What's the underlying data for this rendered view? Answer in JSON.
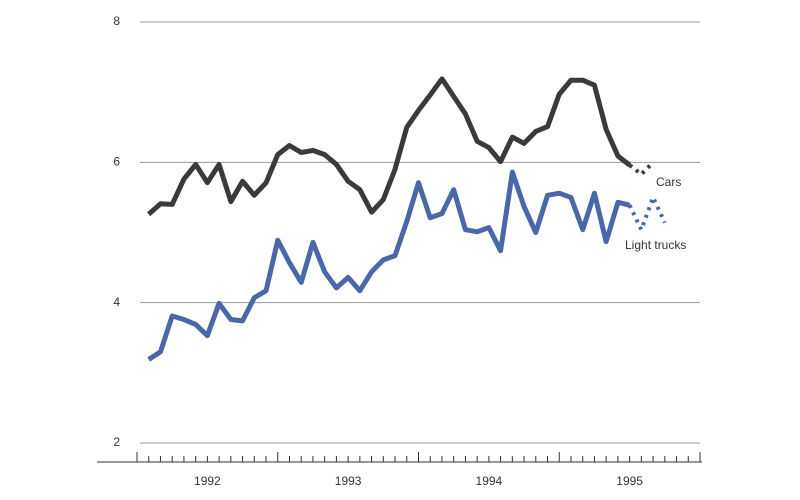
{
  "chart_data": {
    "type": "line",
    "ylim": [
      2,
      8
    ],
    "yticks": [
      2,
      4,
      6,
      8
    ],
    "grid": true,
    "xlim": [
      1992,
      1996
    ],
    "xticks": [
      {
        "value": 1992.5,
        "label": "1992"
      },
      {
        "value": 1993.5,
        "label": "1993"
      },
      {
        "value": 1994.5,
        "label": "1994"
      },
      {
        "value": 1995.5,
        "label": "1995"
      }
    ],
    "series": [
      {
        "name": "Cars",
        "color": "#3a3a3a",
        "dashed": false,
        "x": [
          1992.083,
          1992.167,
          1992.25,
          1992.333,
          1992.417,
          1992.5,
          1992.583,
          1992.667,
          1992.75,
          1992.833,
          1992.917,
          1993,
          1993.083,
          1993.167,
          1993.25,
          1993.333,
          1993.417,
          1993.5,
          1993.583,
          1993.667,
          1993.75,
          1993.833,
          1993.917,
          1994,
          1994.083,
          1994.167,
          1994.25,
          1994.333,
          1994.417,
          1994.5,
          1994.583,
          1994.667,
          1994.75,
          1994.833,
          1994.917,
          1995,
          1995.083,
          1995.167,
          1995.25,
          1995.333,
          1995.417,
          1995.5
        ],
        "values": [
          5.26,
          5.41,
          5.4,
          5.76,
          5.97,
          5.71,
          5.97,
          5.44,
          5.73,
          5.53,
          5.71,
          6.11,
          6.24,
          6.14,
          6.17,
          6.11,
          5.97,
          5.73,
          5.61,
          5.29,
          5.47,
          5.9,
          6.5,
          6.74,
          6.96,
          7.19,
          6.94,
          6.69,
          6.3,
          6.21,
          6.01,
          6.36,
          6.27,
          6.44,
          6.51,
          6.97,
          7.17,
          7.17,
          7.1,
          6.47,
          6.09,
          5.96
        ]
      },
      {
        "name": "Light trucks",
        "color": "#4a68a8",
        "dashed": false,
        "x": [
          1992.083,
          1992.167,
          1992.25,
          1992.333,
          1992.417,
          1992.5,
          1992.583,
          1992.667,
          1992.75,
          1992.833,
          1992.917,
          1993,
          1993.083,
          1993.167,
          1993.25,
          1993.333,
          1993.417,
          1993.5,
          1993.583,
          1993.667,
          1993.75,
          1993.833,
          1993.917,
          1994,
          1994.083,
          1994.167,
          1994.25,
          1994.333,
          1994.417,
          1994.5,
          1994.583,
          1994.667,
          1994.75,
          1994.833,
          1994.917,
          1995,
          1995.083,
          1995.167,
          1995.25,
          1995.333,
          1995.417,
          1995.5
        ],
        "values": [
          3.19,
          3.3,
          3.81,
          3.76,
          3.69,
          3.53,
          3.99,
          3.76,
          3.74,
          4.07,
          4.17,
          4.89,
          4.57,
          4.29,
          4.86,
          4.44,
          4.21,
          4.36,
          4.17,
          4.44,
          4.61,
          4.67,
          5.16,
          5.71,
          5.21,
          5.27,
          5.61,
          5.04,
          5.01,
          5.07,
          4.74,
          5.86,
          5.37,
          5,
          5.53,
          5.56,
          5.5,
          5.04,
          5.56,
          4.87,
          5.43,
          5.39
        ]
      },
      {
        "name": "Cars",
        "color": "#3a3a3a",
        "dashed": true,
        "x": [
          1995.5,
          1995.583,
          1995.667
        ],
        "values": [
          5.96,
          5.83,
          6
        ]
      },
      {
        "name": "Light trucks",
        "color": "#4a68a8",
        "dashed": true,
        "x": [
          1995.5,
          1995.583,
          1995.667,
          1995.75
        ],
        "values": [
          5.39,
          5.04,
          5.5,
          5.14
        ]
      }
    ]
  }
}
